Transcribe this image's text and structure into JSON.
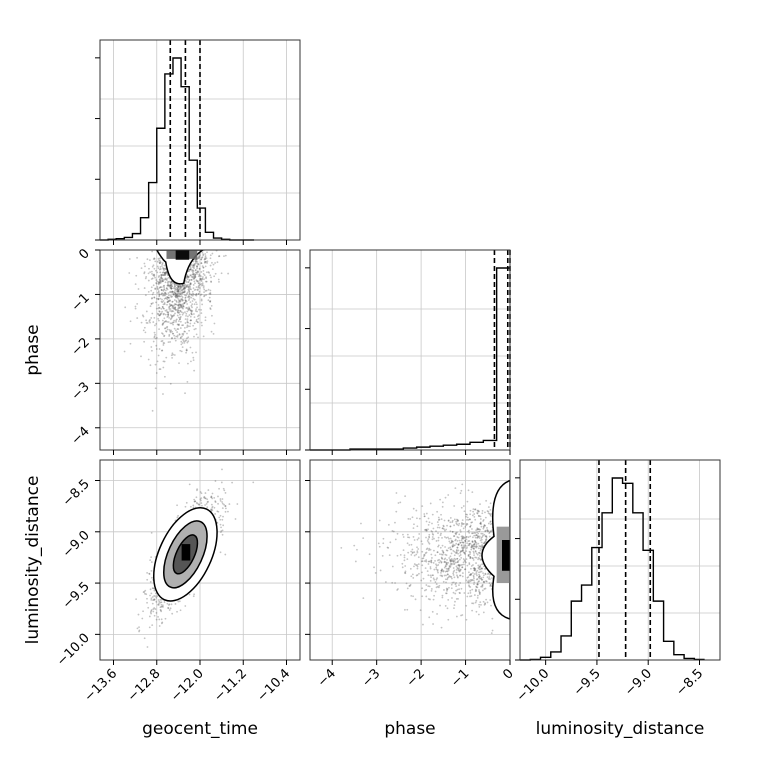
{
  "chart_data": {
    "type": "corner",
    "parameters": [
      {
        "name": "geocent_time",
        "xlabel": "geocent_time",
        "range": [
          -13.85,
          -10.15
        ],
        "ticks": [
          -13.6,
          -12.8,
          -12.0,
          -11.2,
          -10.4
        ],
        "tick_labels": [
          "−13.6",
          "−12.8",
          "−12.0",
          "−11.2",
          "−10.4"
        ],
        "quantiles": [
          -12.55,
          -12.27,
          -12.0
        ],
        "histogram": {
          "bin_edges": [
            -13.85,
            -13.7,
            -13.55,
            -13.4,
            -13.25,
            -13.1,
            -12.95,
            -12.8,
            -12.65,
            -12.5,
            -12.35,
            -12.2,
            -12.05,
            -11.9,
            -11.75,
            -11.6,
            -11.45,
            -11.3,
            -11.15,
            -11.0
          ],
          "counts": [
            0,
            1,
            2,
            4,
            10,
            35,
            90,
            175,
            260,
            285,
            240,
            125,
            50,
            12,
            3,
            1,
            0,
            0,
            0
          ]
        }
      },
      {
        "name": "phase",
        "xlabel": "phase",
        "ylabel": "phase",
        "range": [
          -4.5,
          0.0
        ],
        "ticks": [
          -4,
          -3,
          -2,
          -1,
          0
        ],
        "tick_labels": [
          "−4",
          "−3",
          "−2",
          "−1",
          "0"
        ],
        "quantiles": [
          -0.35,
          -0.05,
          0.0
        ],
        "histogram": {
          "bin_edges": [
            -4.5,
            -4.2,
            -3.9,
            -3.6,
            -3.3,
            -3.0,
            -2.7,
            -2.4,
            -2.1,
            -1.8,
            -1.5,
            -1.2,
            -0.9,
            -0.6,
            -0.3,
            0.0
          ],
          "counts": [
            0,
            0,
            0,
            1,
            1,
            1,
            1,
            2,
            3,
            4,
            5,
            6,
            8,
            10,
            190
          ]
        }
      },
      {
        "name": "luminosity_distance",
        "xlabel": "luminosity_distance",
        "ylabel": "luminosity_distance",
        "range": [
          -10.25,
          -8.3
        ],
        "ticks": [
          -10.0,
          -9.5,
          -9.0,
          -8.5
        ],
        "tick_labels": [
          "−10.0",
          "−9.5",
          "−9.0",
          "−8.5"
        ],
        "quantiles": [
          -9.48,
          -9.22,
          -8.98
        ],
        "histogram": {
          "bin_edges": [
            -10.25,
            -10.15,
            -10.05,
            -9.95,
            -9.85,
            -9.75,
            -9.65,
            -9.55,
            -9.45,
            -9.35,
            -9.25,
            -9.15,
            -9.05,
            -8.95,
            -8.85,
            -8.75,
            -8.65,
            -8.55,
            -8.45
          ],
          "counts": [
            0,
            1,
            5,
            15,
            45,
            110,
            140,
            210,
            275,
            340,
            330,
            275,
            205,
            110,
            35,
            10,
            3,
            1
          ]
        }
      }
    ],
    "scatter_style": "grey points with black filled density contours",
    "grid": true
  }
}
